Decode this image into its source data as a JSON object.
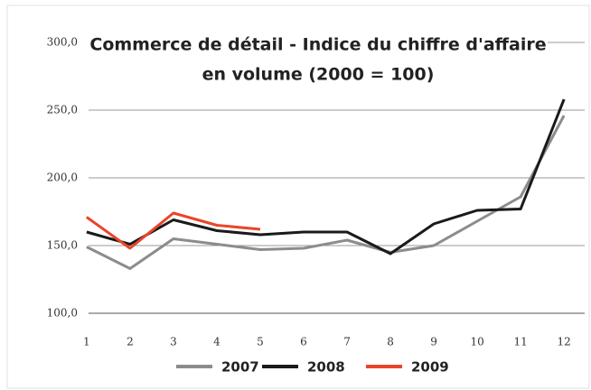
{
  "chart_data": {
    "type": "line",
    "title": [
      "Commerce de détail - Indice du chiffre d'affaire",
      "en volume (2000 = 100)"
    ],
    "categories": [
      "1",
      "2",
      "3",
      "4",
      "5",
      "6",
      "7",
      "8",
      "9",
      "10",
      "11",
      "12"
    ],
    "series": [
      {
        "name": "2007",
        "color": "#8c8c8c",
        "values": [
          149,
          133,
          155,
          151,
          147,
          148,
          154,
          145,
          150,
          168,
          186,
          246
        ]
      },
      {
        "name": "2008",
        "color": "#1a1a1a",
        "values": [
          160,
          151,
          169,
          161,
          158,
          160,
          160,
          144,
          166,
          176,
          177,
          258
        ]
      },
      {
        "name": "2009",
        "color": "#e8462a",
        "values": [
          171,
          148,
          174,
          165,
          162,
          null,
          null,
          null,
          null,
          null,
          null,
          null
        ]
      }
    ],
    "ylim": [
      100,
      300
    ],
    "yticks": [
      {
        "value": 100,
        "label": "100,0"
      },
      {
        "value": 150,
        "label": "150,0"
      },
      {
        "value": 200,
        "label": "200,0"
      },
      {
        "value": 250,
        "label": "250,0"
      },
      {
        "value": 300,
        "label": "300,0"
      }
    ],
    "grid": true,
    "legend": "bottom"
  }
}
